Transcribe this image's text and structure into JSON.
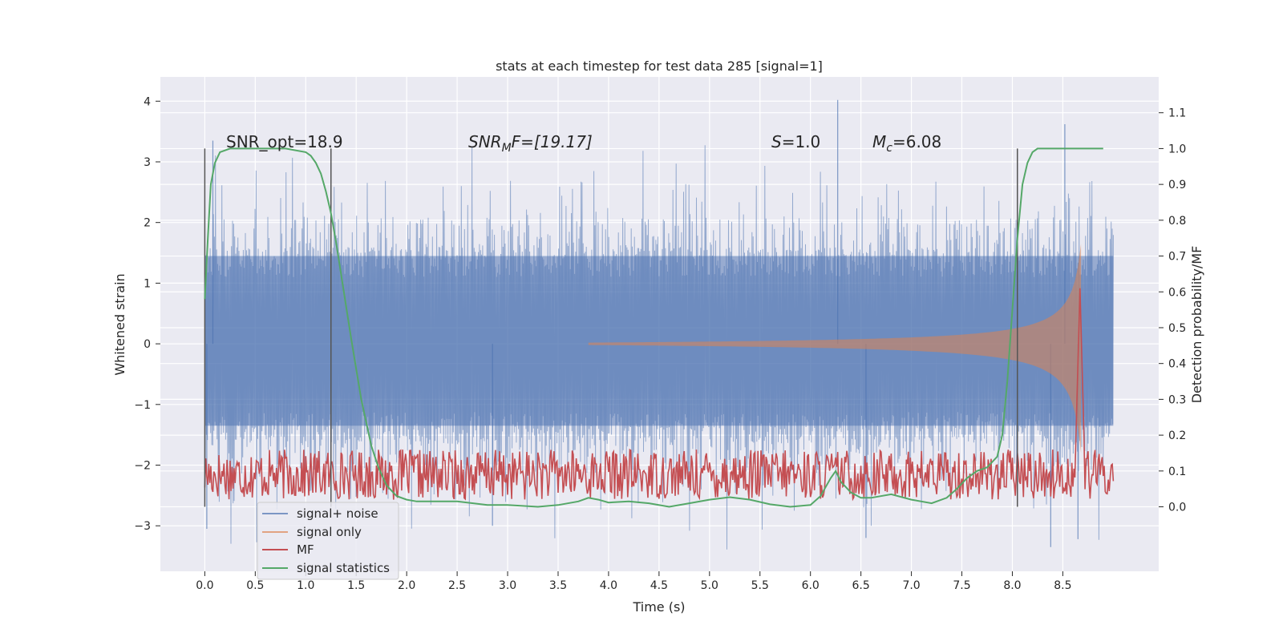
{
  "chart_data": {
    "type": "line",
    "title": "stats at each timestep for test data 285 [signal=1]",
    "xlabel": "Time (s)",
    "ylabel": "Whitened strain",
    "ylabel_right": "Detection probability/MF",
    "xlim": [
      -0.44,
      9.45
    ],
    "ylim": [
      -3.75,
      4.4
    ],
    "ylim_right": [
      -0.18,
      1.2
    ],
    "x_ticks": [
      "0.0",
      "0.5",
      "1.0",
      "1.5",
      "2.0",
      "2.5",
      "3.0",
      "3.5",
      "4.0",
      "4.5",
      "5.0",
      "5.5",
      "6.0",
      "6.5",
      "7.0",
      "7.5",
      "8.0",
      "8.5"
    ],
    "x_tick_values": [
      0,
      0.5,
      1,
      1.5,
      2,
      2.5,
      3,
      3.5,
      4,
      4.5,
      5,
      5.5,
      6,
      6.5,
      7,
      7.5,
      8,
      8.5
    ],
    "y_ticks": [
      "−3",
      "−2",
      "−1",
      "0",
      "1",
      "2",
      "3",
      "4"
    ],
    "y_tick_values": [
      -3,
      -2,
      -1,
      0,
      1,
      2,
      3,
      4
    ],
    "y_ticks_right": [
      "0.0",
      "0.1",
      "0.2",
      "0.3",
      "0.4",
      "0.5",
      "0.6",
      "0.7",
      "0.8",
      "0.9",
      "1.0",
      "1.1"
    ],
    "y_tick_values_right": [
      0,
      0.1,
      0.2,
      0.3,
      0.4,
      0.5,
      0.6,
      0.7,
      0.8,
      0.9,
      1.0,
      1.1
    ],
    "annotations": {
      "snr_opt": "SNR_opt=18.9",
      "snr_mf_prefix": "SNR",
      "snr_mf_sub": "M",
      "snr_mf_suffix": "F=[19.17]",
      "s_prefix": "S",
      "s_value": "=1.0",
      "mc_prefix": "M",
      "mc_sub": "c",
      "mc_value": "=6.08"
    },
    "vertical_markers_s": [
      0.0,
      1.25,
      8.05
    ],
    "noise": {
      "t_start": 0.0,
      "t_end": 9.0,
      "band_low": -1.35,
      "band_high": 1.45,
      "peak_max": 4.02,
      "trough_min": -3.3
    },
    "signal_envelope": {
      "t_start": 3.8,
      "t_end": 8.68,
      "amp_start": 0.02,
      "amp_peak": 1.65,
      "amp_peak_neg": -1.8
    },
    "series": [
      {
        "name": "signal+ noise",
        "color": "#4c72b0"
      },
      {
        "name": "signal only",
        "color": "#dd8452"
      },
      {
        "name": "MF",
        "color": "#c44e52",
        "baseline": 0.09,
        "peak_t": 8.67,
        "peak": 0.61
      },
      {
        "name": "signal statistics",
        "color": "#55a868",
        "x": [
          0,
          0.03,
          0.06,
          0.1,
          0.15,
          0.25,
          0.4,
          0.6,
          0.8,
          1.0,
          1.05,
          1.1,
          1.15,
          1.2,
          1.25,
          1.3,
          1.35,
          1.45,
          1.55,
          1.65,
          1.72,
          1.8,
          1.9,
          2.0,
          2.1,
          2.3,
          2.5,
          2.8,
          3.0,
          3.3,
          3.5,
          3.7,
          3.8,
          3.9,
          4.0,
          4.2,
          4.4,
          4.6,
          4.8,
          5.0,
          5.2,
          5.4,
          5.6,
          5.8,
          6.0,
          6.1,
          6.2,
          6.25,
          6.3,
          6.4,
          6.5,
          6.6,
          6.8,
          7.0,
          7.2,
          7.35,
          7.45,
          7.55,
          7.65,
          7.75,
          7.85,
          7.9,
          7.95,
          8.0,
          8.05,
          8.1,
          8.15,
          8.2,
          8.25,
          8.35,
          8.5,
          8.9
        ],
        "values": [
          0.58,
          0.75,
          0.9,
          0.96,
          0.99,
          1.0,
          1.0,
          1.0,
          1.0,
          0.99,
          0.98,
          0.96,
          0.93,
          0.88,
          0.82,
          0.74,
          0.65,
          0.47,
          0.3,
          0.17,
          0.11,
          0.06,
          0.03,
          0.02,
          0.015,
          0.015,
          0.015,
          0.005,
          0.005,
          0.0,
          0.005,
          0.015,
          0.025,
          0.02,
          0.012,
          0.015,
          0.01,
          0.0,
          0.01,
          0.02,
          0.027,
          0.02,
          0.007,
          0.0,
          0.005,
          0.03,
          0.08,
          0.1,
          0.07,
          0.04,
          0.025,
          0.025,
          0.035,
          0.02,
          0.01,
          0.025,
          0.05,
          0.08,
          0.1,
          0.11,
          0.14,
          0.2,
          0.35,
          0.55,
          0.75,
          0.9,
          0.96,
          0.99,
          1.0,
          1.0,
          1.0,
          1.0
        ]
      }
    ],
    "legend_location": "lower left",
    "grid": true
  }
}
